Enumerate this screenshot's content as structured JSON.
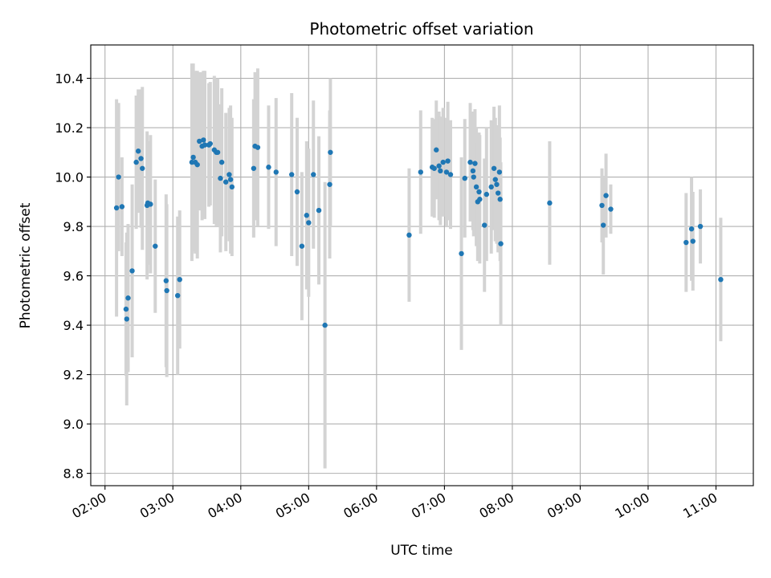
{
  "chart_data": {
    "type": "scatter",
    "title": "Photometric offset variation",
    "xlabel": "UTC time",
    "ylabel": "Photometric offset",
    "x_ticks": [
      "02:00",
      "03:00",
      "04:00",
      "05:00",
      "06:00",
      "07:00",
      "08:00",
      "09:00",
      "10:00",
      "11:00"
    ],
    "x_tick_hours": [
      2,
      3,
      4,
      5,
      6,
      7,
      8,
      9,
      10,
      11
    ],
    "y_ticks": [
      "8.8",
      "9.0",
      "9.2",
      "9.4",
      "9.6",
      "9.8",
      "10.0",
      "10.2",
      "10.4"
    ],
    "y_tick_values": [
      8.8,
      9.0,
      9.2,
      9.4,
      9.6,
      9.8,
      10.0,
      10.2,
      10.4
    ],
    "xlim_hours": [
      1.79,
      11.55
    ],
    "ylim": [
      8.75,
      10.535
    ],
    "grid": true,
    "colors": {
      "point": "#1f77b4",
      "errorbar": "#d3d3d3",
      "grid": "#b0b0b0"
    },
    "series": [
      {
        "points": [
          [
            2.17,
            9.875,
            0.44
          ],
          [
            2.2,
            10.0,
            0.3
          ],
          [
            2.25,
            9.88,
            0.2
          ],
          [
            2.31,
            9.465,
            0.27
          ],
          [
            2.32,
            9.425,
            0.35
          ],
          [
            2.34,
            9.51,
            0.3
          ],
          [
            2.4,
            9.62,
            0.35
          ],
          [
            2.46,
            10.06,
            0.27
          ],
          [
            2.49,
            10.105,
            0.25
          ],
          [
            2.53,
            10.075,
            0.28
          ],
          [
            2.55,
            10.035,
            0.33
          ],
          [
            2.62,
            9.885,
            0.3
          ],
          [
            2.63,
            9.895,
            0.25
          ],
          [
            2.67,
            9.89,
            0.28
          ],
          [
            2.74,
            9.72,
            0.27
          ],
          [
            2.9,
            9.58,
            0.35
          ],
          [
            2.91,
            9.54,
            0.35
          ],
          [
            3.07,
            9.52,
            0.32
          ],
          [
            3.1,
            9.585,
            0.28
          ],
          [
            3.28,
            10.06,
            0.4
          ],
          [
            3.3,
            10.08,
            0.38
          ],
          [
            3.33,
            10.06,
            0.37
          ],
          [
            3.36,
            10.05,
            0.38
          ],
          [
            3.39,
            10.145,
            0.28
          ],
          [
            3.43,
            10.125,
            0.3
          ],
          [
            3.45,
            10.15,
            0.28
          ],
          [
            3.47,
            10.13,
            0.3
          ],
          [
            3.53,
            10.13,
            0.25
          ],
          [
            3.55,
            10.135,
            0.25
          ],
          [
            3.61,
            10.11,
            0.3
          ],
          [
            3.64,
            10.1,
            0.3
          ],
          [
            3.66,
            10.1,
            0.3
          ],
          [
            3.72,
            10.06,
            0.3
          ],
          [
            3.7,
            9.995,
            0.3
          ],
          [
            3.78,
            9.98,
            0.28
          ],
          [
            3.83,
            10.01,
            0.27
          ],
          [
            3.85,
            9.99,
            0.3
          ],
          [
            3.87,
            9.96,
            0.28
          ],
          [
            4.19,
            10.035,
            0.28
          ],
          [
            4.21,
            10.125,
            0.3
          ],
          [
            4.25,
            10.12,
            0.32
          ],
          [
            4.41,
            10.04,
            0.25
          ],
          [
            4.52,
            10.02,
            0.3
          ],
          [
            4.75,
            10.01,
            0.33
          ],
          [
            4.83,
            9.94,
            0.3
          ],
          [
            4.9,
            9.72,
            0.3
          ],
          [
            4.97,
            9.845,
            0.3
          ],
          [
            5.0,
            9.815,
            0.3
          ],
          [
            5.07,
            10.01,
            0.3
          ],
          [
            5.15,
            9.865,
            0.3
          ],
          [
            5.24,
            9.4,
            0.58
          ],
          [
            5.31,
            9.97,
            0.3
          ],
          [
            5.32,
            10.1,
            0.3
          ],
          [
            6.48,
            9.765,
            0.27
          ],
          [
            6.65,
            10.02,
            0.25
          ],
          [
            6.82,
            10.04,
            0.2
          ],
          [
            6.85,
            10.035,
            0.2
          ],
          [
            6.88,
            10.11,
            0.2
          ],
          [
            6.92,
            10.045,
            0.22
          ],
          [
            6.94,
            10.025,
            0.22
          ],
          [
            6.98,
            10.06,
            0.22
          ],
          [
            7.03,
            10.02,
            0.22
          ],
          [
            7.05,
            10.065,
            0.24
          ],
          [
            7.09,
            10.01,
            0.22
          ],
          [
            7.25,
            9.69,
            0.39
          ],
          [
            7.3,
            9.995,
            0.24
          ],
          [
            7.38,
            10.06,
            0.24
          ],
          [
            7.42,
            10.025,
            0.24
          ],
          [
            7.43,
            10.0,
            0.24
          ],
          [
            7.45,
            10.055,
            0.22
          ],
          [
            7.47,
            9.96,
            0.24
          ],
          [
            7.49,
            9.9,
            0.24
          ],
          [
            7.51,
            9.94,
            0.24
          ],
          [
            7.52,
            9.91,
            0.26
          ],
          [
            7.59,
            9.805,
            0.27
          ],
          [
            7.62,
            9.93,
            0.27
          ],
          [
            7.69,
            9.96,
            0.27
          ],
          [
            7.73,
            10.035,
            0.25
          ],
          [
            7.75,
            9.99,
            0.25
          ],
          [
            7.77,
            9.97,
            0.24
          ],
          [
            7.79,
            9.935,
            0.24
          ],
          [
            7.81,
            10.02,
            0.27
          ],
          [
            7.83,
            9.73,
            0.33
          ],
          [
            7.82,
            9.91,
            0.25
          ],
          [
            8.55,
            9.895,
            0.25
          ],
          [
            9.32,
            9.885,
            0.15
          ],
          [
            9.34,
            9.805,
            0.2
          ],
          [
            9.38,
            9.925,
            0.17
          ],
          [
            9.45,
            9.87,
            0.1
          ],
          [
            10.56,
            9.735,
            0.2
          ],
          [
            10.64,
            9.79,
            0.21
          ],
          [
            10.66,
            9.74,
            0.2
          ],
          [
            10.77,
            9.8,
            0.15
          ],
          [
            11.07,
            9.585,
            0.25
          ]
        ]
      }
    ]
  }
}
